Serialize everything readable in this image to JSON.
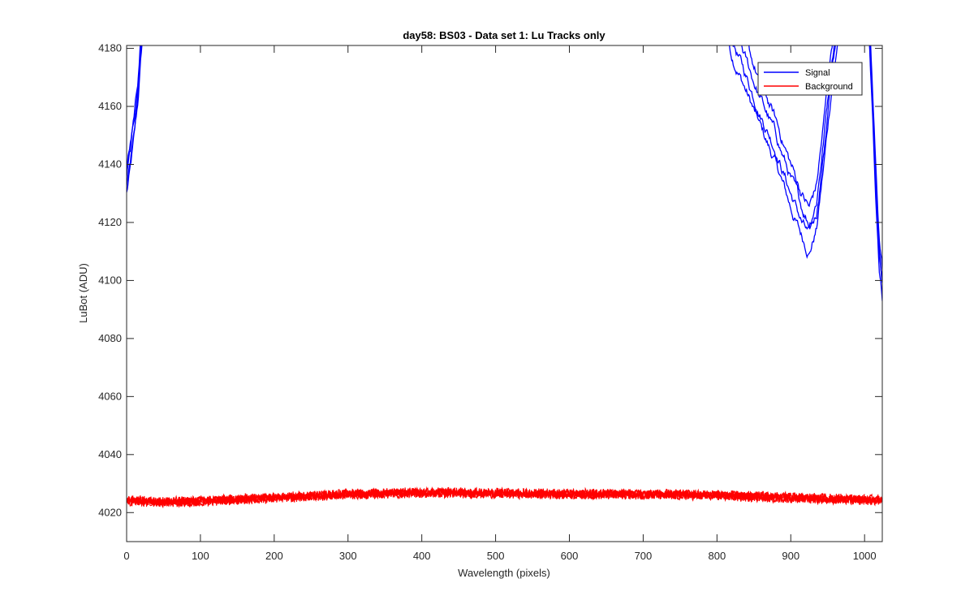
{
  "chart_data": {
    "type": "line",
    "title": "day58: BS03 - Data set 1: Lu Tracks only",
    "xlabel": "Wavelength (pixels)",
    "ylabel": "LuBot (ADU)",
    "xlim": [
      0,
      1024
    ],
    "ylim": [
      4010,
      4181
    ],
    "xticks": [
      0,
      100,
      200,
      300,
      400,
      500,
      600,
      700,
      800,
      900,
      1000
    ],
    "yticks": [
      4020,
      4040,
      4060,
      4080,
      4100,
      4120,
      4140,
      4160,
      4180
    ],
    "grid": false,
    "legend": {
      "placement": "top-right",
      "entries": [
        "Signal",
        "Background"
      ]
    },
    "series": [
      {
        "name": "Signal",
        "color": "#0000ff",
        "trace_count": 4,
        "noise": 2.5,
        "base": {
          "x": [
            0,
            5,
            10,
            15,
            20,
            25,
            30
          ],
          "y": [
            4130,
            4138,
            4148,
            4160,
            4178,
            4195,
            4215
          ]
        },
        "segments": [
          {
            "x": [
              0,
              5,
              10,
              15,
              20,
              25,
              30
            ],
            "y": [
              4130,
              4138,
              4148,
              4160,
              4178,
              4195,
              4215
            ]
          },
          {
            "x": [
              790,
              800,
              820,
              840,
              860,
              880,
              900,
              915,
              925,
              935,
              945,
              955,
              965,
              975,
              985,
              995,
              1005,
              1012
            ],
            "y": [
              4205,
              4195,
              4178,
              4165,
              4152,
              4140,
              4125,
              4115,
              4110,
              4118,
              4140,
              4165,
              4185,
              4205,
              4225,
              4230,
              4200,
              4180
            ]
          },
          {
            "x": [
              1005,
              1010,
              1015,
              1020,
              1024
            ],
            "y": [
              4190,
              4160,
              4130,
              4105,
              4095
            ]
          }
        ],
        "trace_offsets": [
          0,
          5,
          10,
          15
        ]
      },
      {
        "name": "Background",
        "color": "#ff0000",
        "trace_count": 4,
        "noise": 1.3,
        "base": {
          "x": [
            0,
            50,
            100,
            200,
            300,
            400,
            500,
            600,
            700,
            800,
            900,
            1000,
            1024
          ],
          "y": [
            4024,
            4023.5,
            4023.8,
            4025,
            4026.2,
            4026.8,
            4026.5,
            4026.3,
            4026.2,
            4025.8,
            4025,
            4024.3,
            4024
          ]
        },
        "trace_offsets": [
          0,
          0.6,
          -0.6,
          1.1
        ]
      }
    ]
  }
}
